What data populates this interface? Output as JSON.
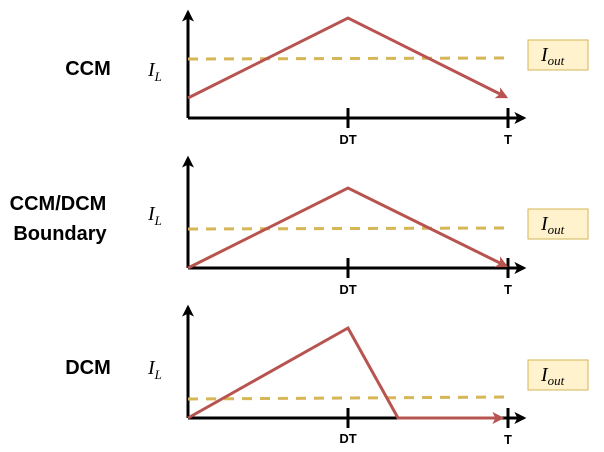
{
  "colors": {
    "waveform": "#b85450",
    "average": "#d6b656",
    "legend_fill": "#fff2cc",
    "legend_stroke": "#d6b656",
    "axis": "#000000"
  },
  "panels": [
    {
      "mode_lines": [
        "CCM"
      ],
      "current_label": {
        "base": "I",
        "sub": "L"
      },
      "avg_label": {
        "base": "I",
        "sub": "out"
      },
      "tick_labels": {
        "dt": "DT",
        "t": "T"
      }
    },
    {
      "mode_lines": [
        "CCM/DCM",
        "Boundary"
      ],
      "current_label": {
        "base": "I",
        "sub": "L"
      },
      "avg_label": {
        "base": "I",
        "sub": "out"
      },
      "tick_labels": {
        "dt": "DT",
        "t": "T"
      }
    },
    {
      "mode_lines": [
        "DCM"
      ],
      "current_label": {
        "base": "I",
        "sub": "L"
      },
      "avg_label": {
        "base": "I",
        "sub": "out"
      },
      "tick_labels": {
        "dt": "DT",
        "t": "T"
      }
    }
  ]
}
